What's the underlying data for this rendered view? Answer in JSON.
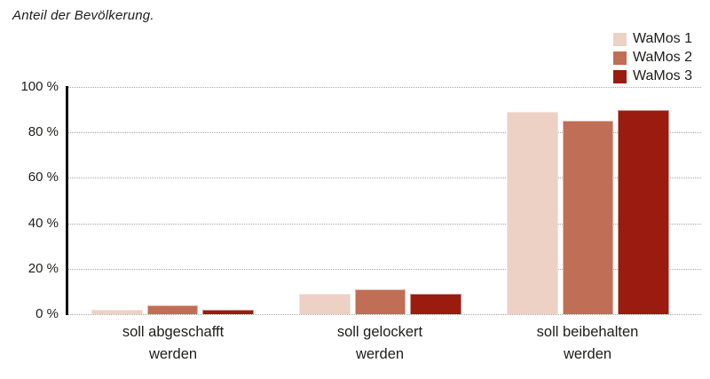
{
  "title": "Anteil der Bevölkerung.",
  "legend": {
    "position": "top-right",
    "items": [
      {
        "label": "WaMos 1",
        "color": "#edd1c5"
      },
      {
        "label": "WaMos 2",
        "color": "#c06e55"
      },
      {
        "label": "WaMos 3",
        "color": "#9a1b10"
      }
    ]
  },
  "chart_data": {
    "type": "bar",
    "title": "Anteil der Bevölkerung.",
    "categories": [
      "soll abgeschafft werden",
      "soll gelockert werden",
      "soll beibehalten werden"
    ],
    "category_label_lines": [
      [
        "soll abgeschafft",
        "werden"
      ],
      [
        "soll gelockert",
        "werden"
      ],
      [
        "soll beibehalten",
        "werden"
      ]
    ],
    "series": [
      {
        "name": "WaMos 1",
        "color": "#edd1c5",
        "values": [
          2,
          9,
          89
        ]
      },
      {
        "name": "WaMos 2",
        "color": "#c06e55",
        "values": [
          4,
          11,
          85
        ]
      },
      {
        "name": "WaMos 3",
        "color": "#9a1b10",
        "values": [
          2,
          9,
          90
        ]
      }
    ],
    "unit": "%",
    "ylim": [
      0,
      100
    ],
    "yticks": [
      {
        "label": "100 %",
        "value": 100
      },
      {
        "label": "80 %",
        "value": 80
      },
      {
        "label": "60 %",
        "value": 60
      },
      {
        "label": "40 %",
        "value": 40
      },
      {
        "label": "20 %",
        "value": 20
      },
      {
        "label": "0 %",
        "value": 0
      }
    ],
    "grid": "horizontal-dotted",
    "legend_position": "top-right"
  },
  "colors": {
    "background": "#ffffff",
    "axis": "#121212",
    "gridline": "#a9a9a9",
    "text": "#1d1d1b"
  }
}
